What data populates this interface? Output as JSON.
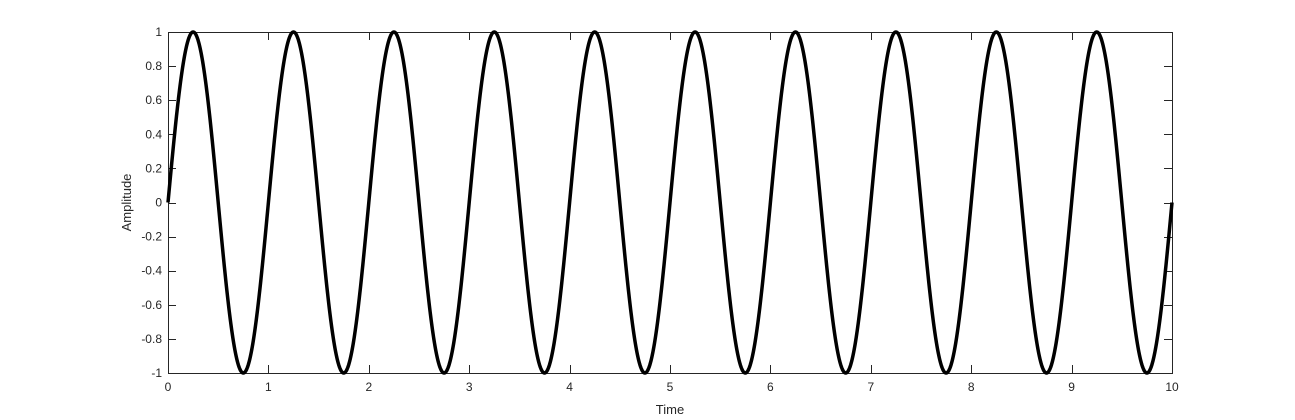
{
  "chart_data": {
    "type": "line",
    "title": "",
    "xlabel": "Time",
    "ylabel": "Amplitude",
    "xlim": [
      0,
      10
    ],
    "ylim": [
      -1,
      1
    ],
    "x_ticks": [
      0,
      1,
      2,
      3,
      4,
      5,
      6,
      7,
      8,
      9,
      10
    ],
    "x_tick_labels": [
      "0",
      "1",
      "2",
      "3",
      "4",
      "5",
      "6",
      "7",
      "8",
      "9",
      "10"
    ],
    "y_ticks": [
      1,
      0.8,
      0.6,
      0.4,
      0.2,
      0,
      -0.2,
      -0.4,
      -0.6,
      -0.8,
      -1
    ],
    "y_tick_labels": [
      "1",
      "0.8",
      "0.6",
      "0.4",
      "0.2",
      "0",
      "-0.2",
      "-0.4",
      "-0.6",
      "-0.8",
      "-1"
    ],
    "grid": false,
    "box": true,
    "series": [
      {
        "function": "sin(2*pi*x)",
        "frequency": 1,
        "amplitude": 1,
        "x_start": 0,
        "x_end": 10,
        "color": "#000000"
      }
    ]
  }
}
